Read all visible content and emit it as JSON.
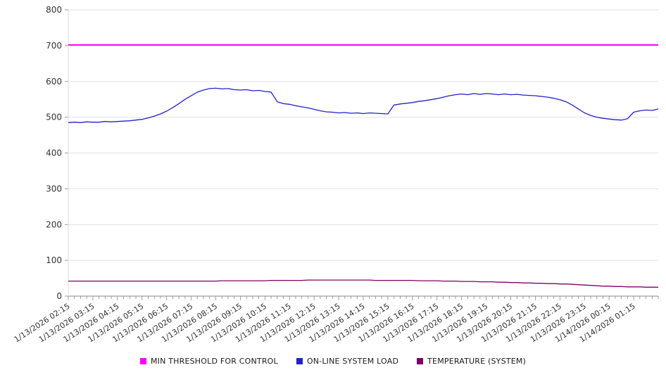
{
  "chart_data": {
    "type": "line",
    "title": "",
    "xlabel": "",
    "ylabel": "",
    "ylim": [
      0,
      800
    ],
    "y_ticks": [
      0,
      100,
      200,
      300,
      400,
      500,
      600,
      700,
      800
    ],
    "grid": "horizontal",
    "legend_position": "bottom",
    "label_every": 4,
    "x_labels": [
      "1/13/2026 02:15",
      "1/13/2026 03:15",
      "1/13/2026 04:15",
      "1/13/2026 05:15",
      "1/13/2026 06:15",
      "1/13/2026 07:15",
      "1/13/2026 08:15",
      "1/13/2026 09:15",
      "1/13/2026 10:15",
      "1/13/2026 11:15",
      "1/13/2026 12:15",
      "1/13/2026 13:15",
      "1/13/2026 14:15",
      "1/13/2026 15:15",
      "1/13/2026 16:15",
      "1/13/2026 17:15",
      "1/13/2026 18:15",
      "1/13/2026 19:15",
      "1/13/2026 20:15",
      "1/13/2026 21:15",
      "1/13/2026 22:15",
      "1/13/2026 23:15",
      "1/14/2026 00:15",
      "1/14/2026 01:15"
    ],
    "series": [
      {
        "name": "MIN THRESHOLD FOR CONTROL",
        "color": "#ff00ff",
        "constant": 702
      },
      {
        "name": "ON-LINE SYSTEM LOAD",
        "color": "#2121c8",
        "values": [
          485,
          486,
          485,
          487,
          486,
          486,
          488,
          487,
          488,
          489,
          490,
          492,
          494,
          498,
          503,
          509,
          517,
          527,
          538,
          550,
          560,
          570,
          576,
          580,
          581,
          579,
          580,
          577,
          576,
          577,
          574,
          575,
          572,
          570,
          543,
          538,
          536,
          532,
          529,
          526,
          522,
          518,
          515,
          514,
          512,
          513,
          511,
          512,
          510,
          512,
          511,
          510,
          509,
          534,
          537,
          539,
          541,
          544,
          546,
          549,
          552,
          556,
          560,
          563,
          565,
          563,
          566,
          564,
          566,
          565,
          563,
          565,
          563,
          564,
          562,
          561,
          560,
          558,
          556,
          553,
          549,
          543,
          534,
          523,
          512,
          505,
          500,
          497,
          495,
          493,
          492,
          496,
          514,
          518,
          520,
          519,
          523
        ]
      },
      {
        "name": "TEMPERATURE (SYSTEM)",
        "color": "#800066",
        "values": [
          42,
          42,
          42,
          42,
          42,
          42,
          42,
          42,
          42,
          42,
          42,
          42,
          42,
          42,
          42,
          42,
          42,
          42,
          42,
          42,
          42,
          42,
          42,
          42,
          42,
          43,
          43,
          43,
          43,
          43,
          43,
          43,
          43,
          44,
          44,
          44,
          44,
          44,
          44,
          45,
          45,
          45,
          45,
          45,
          45,
          45,
          45,
          45,
          45,
          45,
          44,
          44,
          44,
          44,
          44,
          44,
          44,
          43,
          43,
          43,
          43,
          42,
          42,
          42,
          41,
          41,
          41,
          40,
          40,
          40,
          39,
          39,
          38,
          38,
          37,
          37,
          36,
          36,
          35,
          35,
          34,
          34,
          33,
          32,
          31,
          30,
          29,
          28,
          28,
          27,
          27,
          26,
          26,
          26,
          25,
          25,
          25
        ]
      }
    ]
  }
}
